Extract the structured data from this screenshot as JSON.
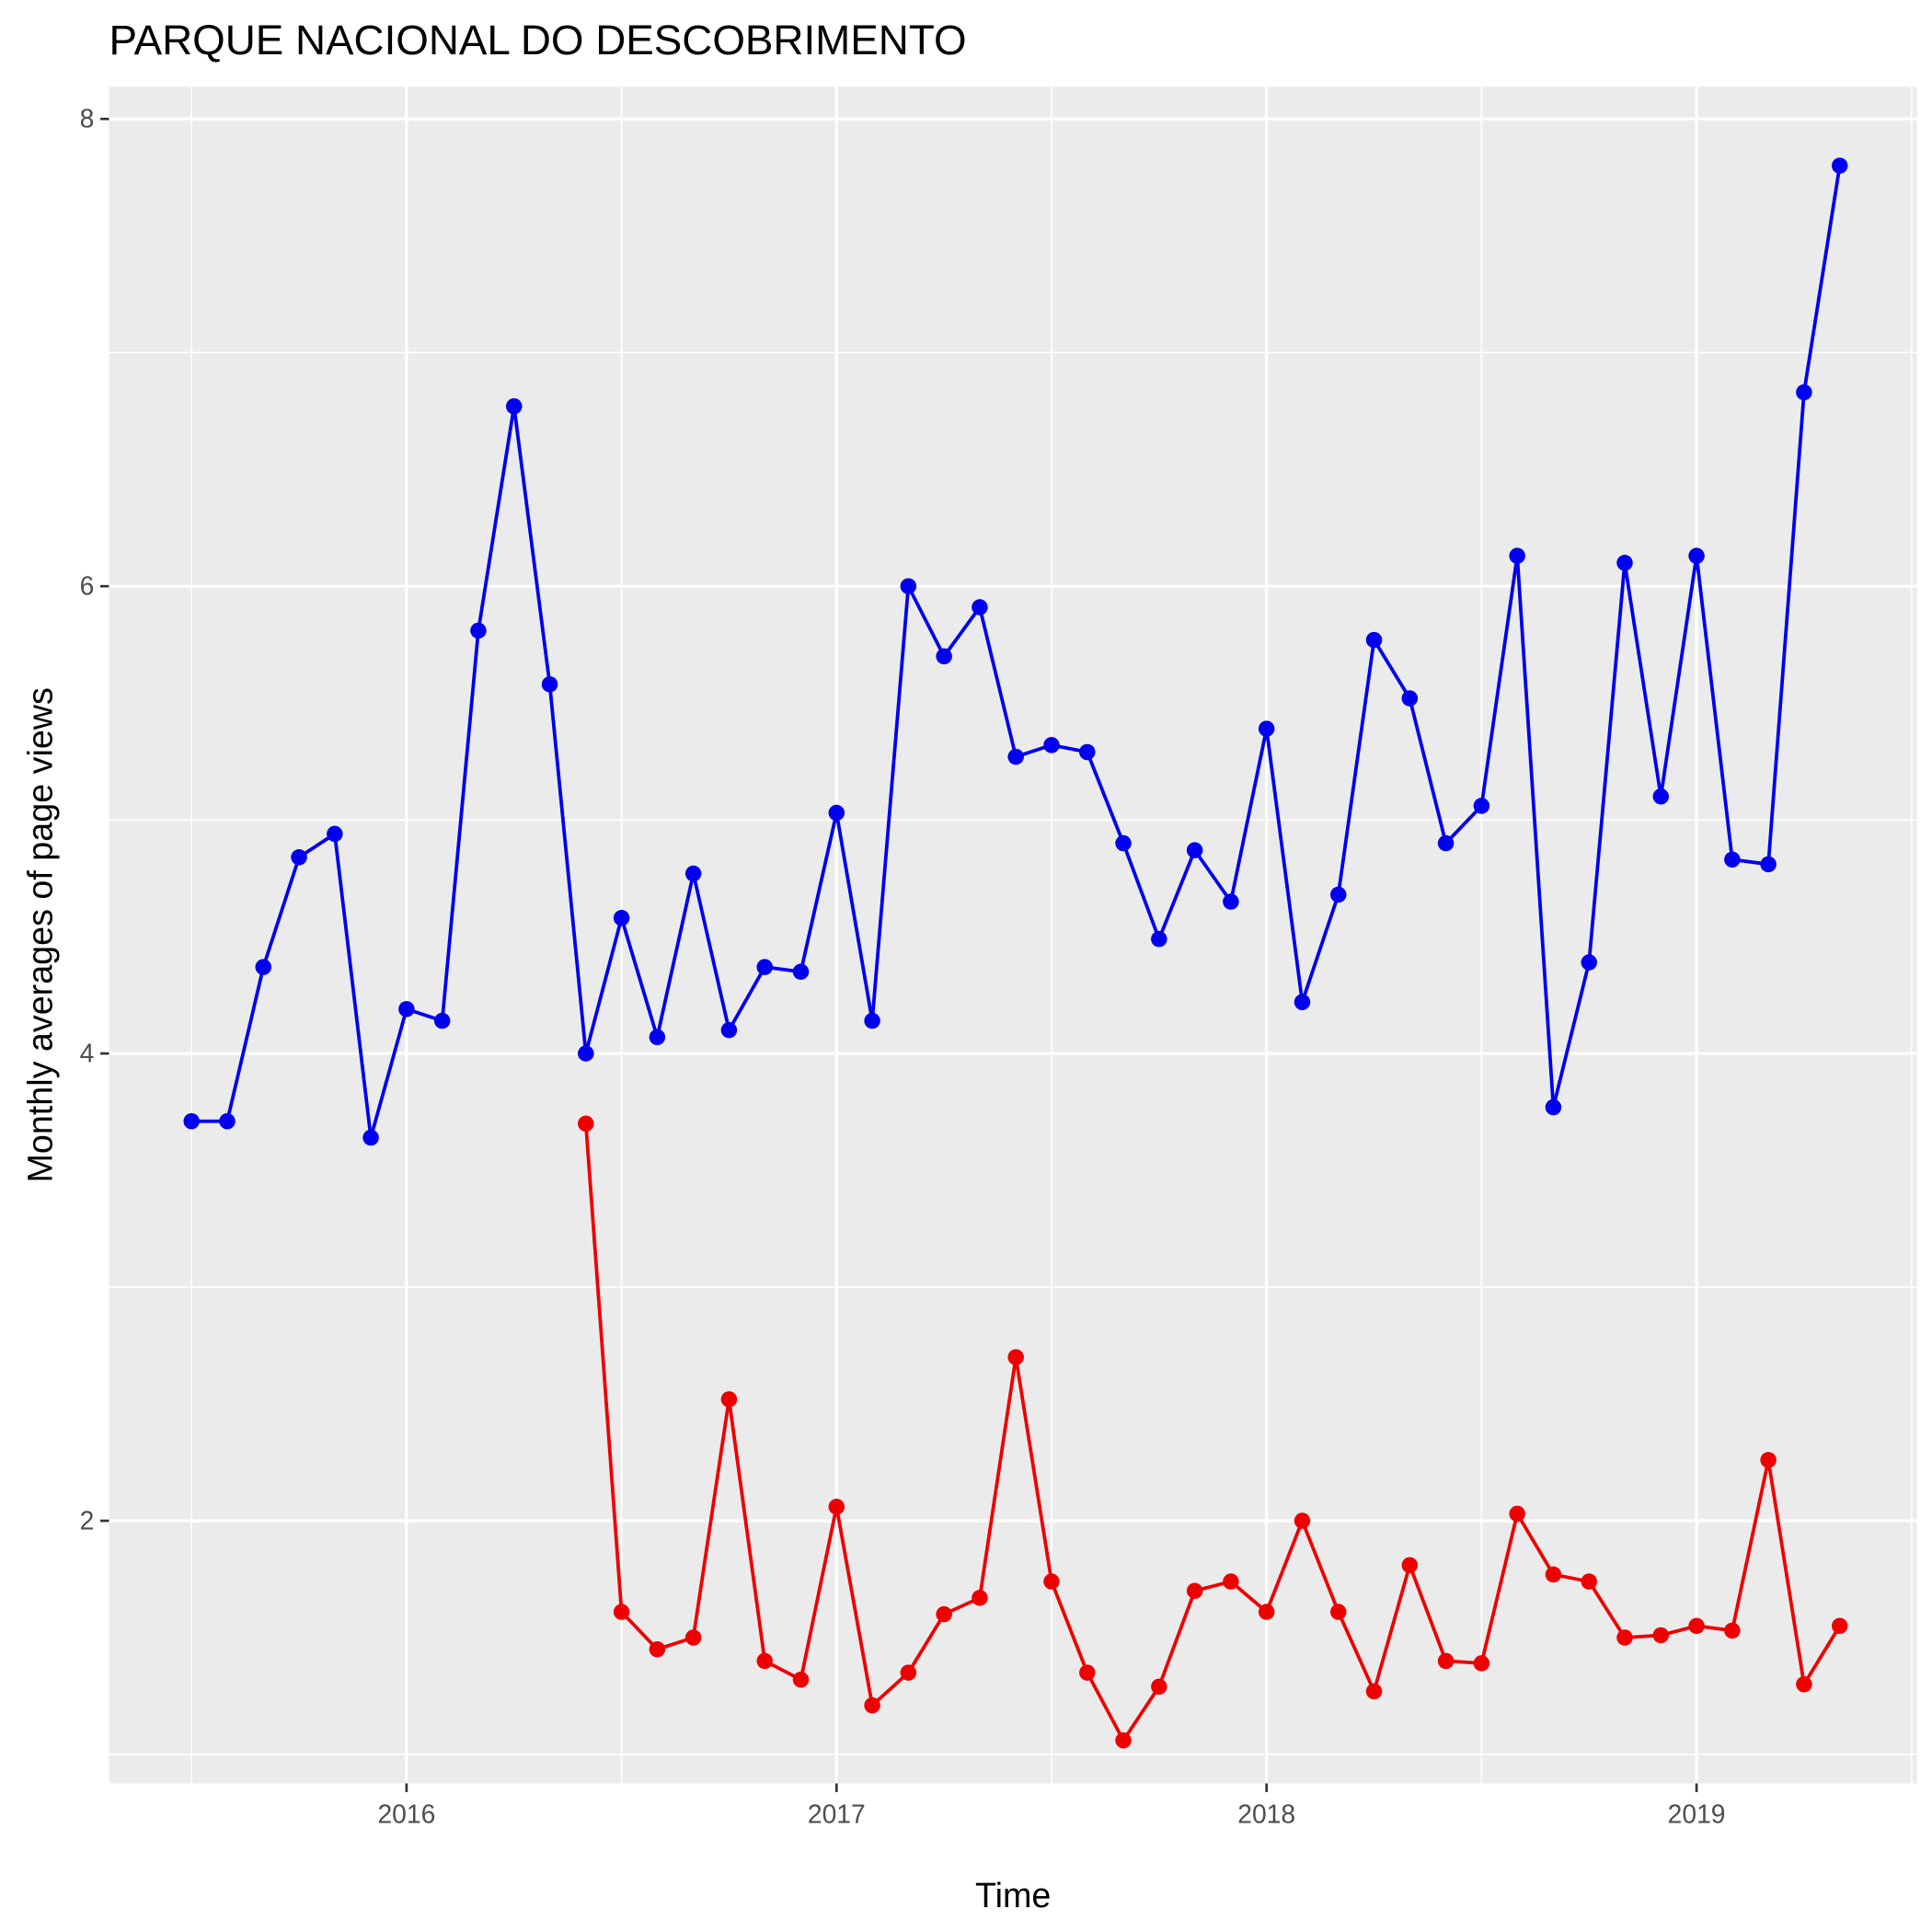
{
  "chart_data": {
    "type": "line",
    "title": "PARQUE NACIONAL DO DESCOBRIMENTO",
    "x_label": "Time",
    "y_label": "Monthly averages of page views",
    "x": [
      2015.5,
      2015.583,
      2015.667,
      2015.75,
      2015.833,
      2015.917,
      2016,
      2016.083,
      2016.167,
      2016.25,
      2016.333,
      2016.417,
      2016.5,
      2016.583,
      2016.667,
      2016.75,
      2016.833,
      2016.917,
      2017,
      2017.083,
      2017.167,
      2017.25,
      2017.333,
      2017.417,
      2017.5,
      2017.583,
      2017.667,
      2017.75,
      2017.833,
      2017.917,
      2018,
      2018.083,
      2018.167,
      2018.25,
      2018.333,
      2018.417,
      2018.5,
      2018.583,
      2018.667,
      2018.75,
      2018.833,
      2018.917,
      2019,
      2019.083,
      2019.167,
      2019.25,
      2019.333
    ],
    "series": [
      {
        "color": "#0000ee",
        "values": [
          3.71,
          3.71,
          4.37,
          4.84,
          4.94,
          3.64,
          4.19,
          4.14,
          5.81,
          6.77,
          5.58,
          4.0,
          4.58,
          4.07,
          4.77,
          4.1,
          4.37,
          4.35,
          5.03,
          4.14,
          6.0,
          5.7,
          5.91,
          5.27,
          5.32,
          5.29,
          4.9,
          4.49,
          4.87,
          4.65,
          5.39,
          4.22,
          4.68,
          5.77,
          5.52,
          4.9,
          5.06,
          6.13,
          3.77,
          4.39,
          6.1,
          5.1,
          6.13,
          4.83,
          4.81,
          6.83,
          7.8
        ]
      },
      {
        "color": "#ee0000",
        "values": [
          null,
          null,
          null,
          null,
          null,
          null,
          null,
          null,
          null,
          null,
          null,
          3.7,
          1.61,
          1.45,
          1.5,
          2.52,
          1.4,
          1.32,
          2.06,
          1.21,
          1.35,
          1.6,
          1.67,
          2.7,
          1.74,
          1.35,
          1.06,
          1.29,
          1.7,
          1.74,
          1.61,
          2.0,
          1.61,
          1.27,
          1.81,
          1.4,
          1.39,
          2.03,
          1.77,
          1.74,
          1.5,
          1.51,
          1.55,
          1.53,
          2.26,
          1.3,
          1.55
        ]
      }
    ],
    "xlim": [
      2015.308,
      2019.513
    ],
    "xticks": [
      2016,
      2017,
      2018,
      2019
    ],
    "ylim": [
      0.876,
      8.138
    ],
    "yticks": [
      2,
      4,
      6,
      8
    ],
    "grid": true
  }
}
